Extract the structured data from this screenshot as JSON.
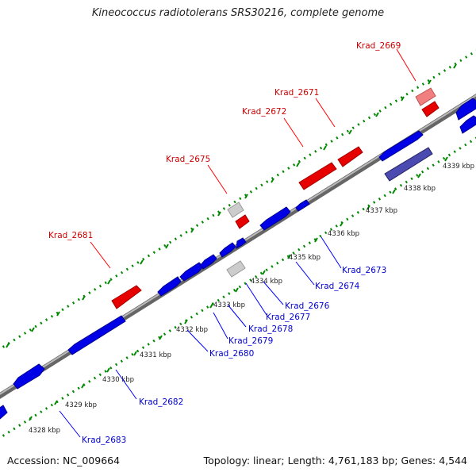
{
  "title": "Kineococcus radiotolerans SRS30216, complete genome",
  "footer": {
    "accession": "Accession: NC_009664",
    "summary": "Topology: linear; Length: 4,761,183 bp; Genes: 4,544"
  },
  "colors": {
    "forward": "#e60000",
    "reverse": "#0000e6",
    "highlight_forward": "#f08080",
    "highlight_reverse": "#4a4ab0",
    "other": "#cccccc",
    "axis": "#888888",
    "ticks": "#008800",
    "label_forward": "#cc0000",
    "label_reverse": "#0000cc"
  },
  "ticks": [
    "4328 kbp",
    "4329 kbp",
    "4330 kbp",
    "4331 kbp",
    "4332 kbp",
    "4333 kbp",
    "4334 kbp",
    "4335 kbp",
    "4336 kbp",
    "4337 kbp",
    "4338 kbp",
    "4339 kbp"
  ],
  "labels_forward": [
    "Krad_2681",
    "Krad_2675",
    "Krad_2672",
    "Krad_2671",
    "Krad_2669"
  ],
  "labels_reverse": [
    "Krad_2683",
    "Krad_2682",
    "Krad_2680",
    "Krad_2679",
    "Krad_2678",
    "Krad_2677",
    "Krad_2676",
    "Krad_2674",
    "Krad_2673"
  ]
}
